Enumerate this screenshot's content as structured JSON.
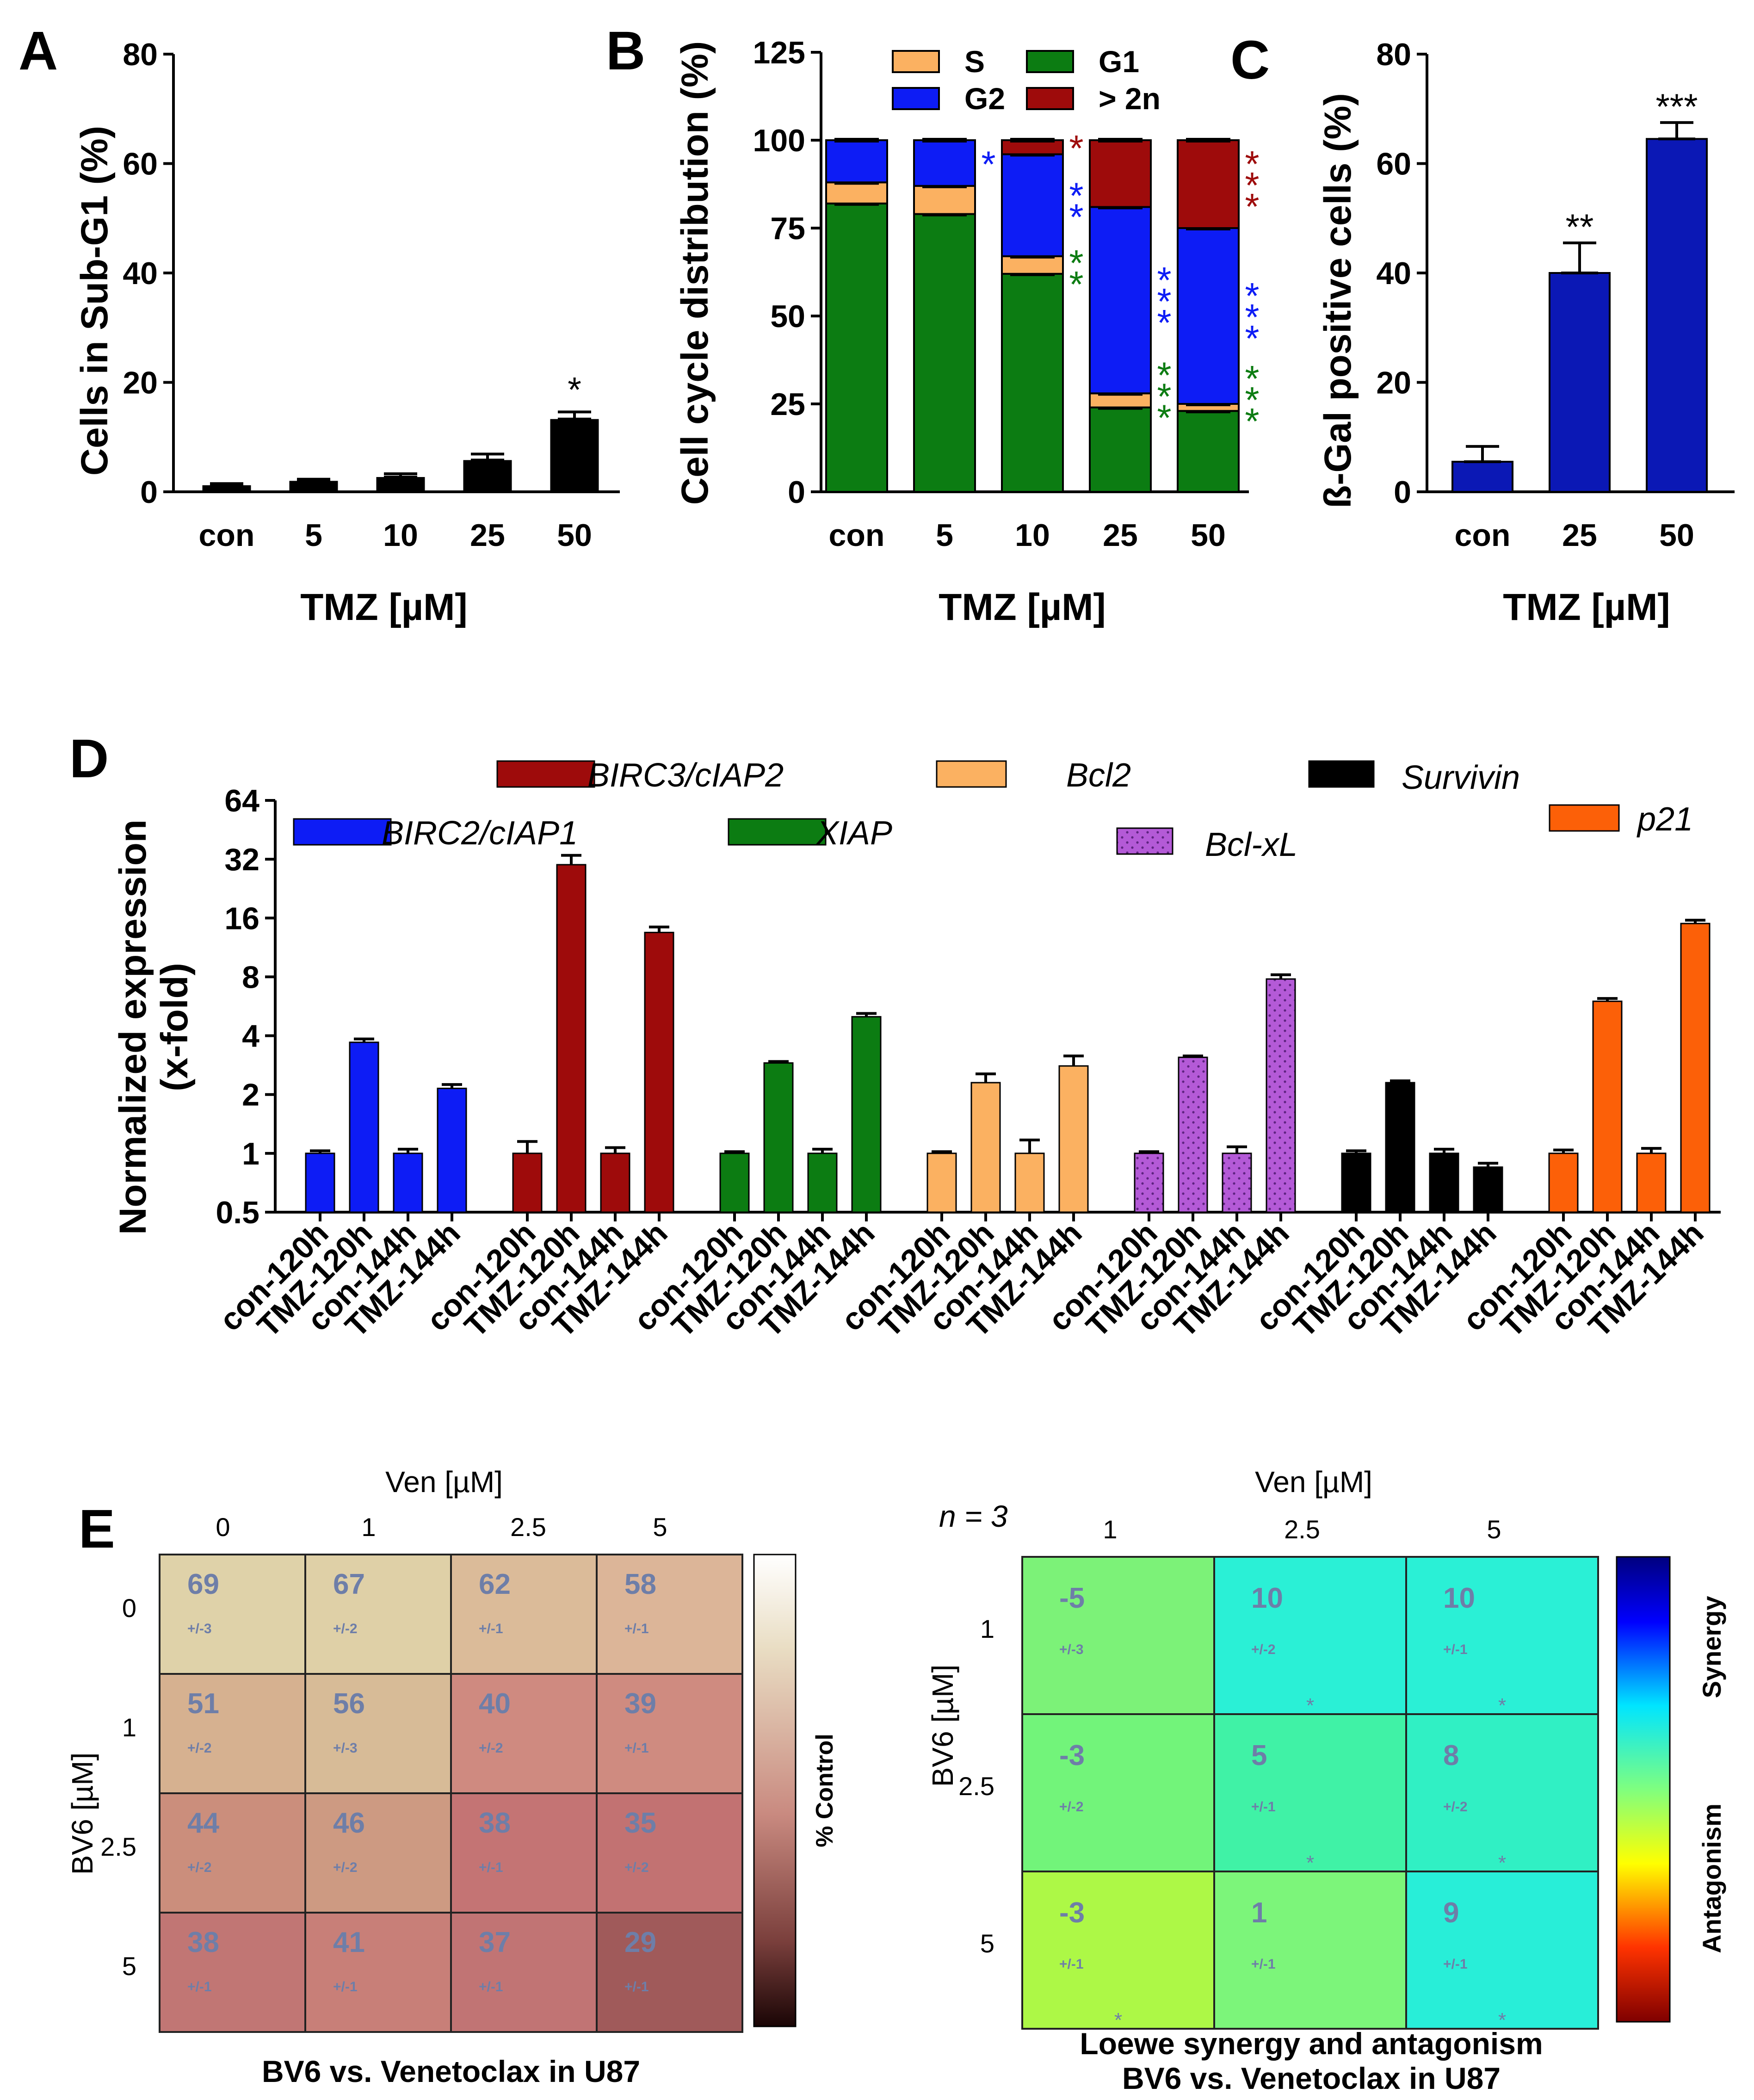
{
  "panels": {
    "A": "A",
    "B": "B",
    "C": "C",
    "D": "D",
    "E": "E"
  },
  "colors": {
    "S": "#fbb161",
    "G1": "#0c7c12",
    "G2": "#0d1cf5",
    "gt2n": "#9e0b0b",
    "blue": "#0d1cf5",
    "darkred": "#9e0b0b",
    "green": "#0c7c12",
    "lightorange": "#fbb161",
    "purple": "#b45ad7",
    "black": "#000000",
    "orange": "#fc6008",
    "navy": "#0b18b5"
  },
  "chart_data": [
    {
      "id": "A",
      "type": "bar",
      "ylabel": "Cells in Sub-G1 (%)",
      "xlabel": "TMZ [µM]",
      "ylim": [
        0,
        80
      ],
      "yticks": [
        0,
        20,
        40,
        60,
        80
      ],
      "categories": [
        "con",
        "5",
        "10",
        "25",
        "50"
      ],
      "values": [
        1.2,
        2.0,
        2.7,
        5.8,
        13.3
      ],
      "errors": [
        0.3,
        0.3,
        0.6,
        1.1,
        1.3
      ],
      "annotations": [
        "",
        "",
        "",
        "",
        "*"
      ]
    },
    {
      "id": "B",
      "type": "bar",
      "ylabel": "Cell cycle distribution (%)",
      "xlabel": "TMZ [µM]",
      "ylim": [
        0,
        125
      ],
      "yticks": [
        0,
        25,
        50,
        75,
        100,
        125
      ],
      "categories": [
        "con",
        "5",
        "10",
        "25",
        "50"
      ],
      "legend": [
        "S",
        "G1",
        "G2",
        "> 2n"
      ],
      "series": [
        {
          "name": "G1",
          "values": [
            82,
            79,
            62,
            24,
            23
          ]
        },
        {
          "name": "S",
          "values": [
            6,
            8,
            5,
            4,
            2
          ]
        },
        {
          "name": "G2",
          "values": [
            12,
            13,
            29,
            53,
            50
          ]
        },
        {
          "name": "> 2n",
          "values": [
            0,
            0,
            4,
            19,
            25
          ]
        }
      ],
      "annotations": [
        {
          "category": "5",
          "series": "G2",
          "text": "*"
        },
        {
          "category": "10",
          "series": "> 2n",
          "text": "*"
        },
        {
          "category": "10",
          "series": "G2",
          "text": "**"
        },
        {
          "category": "10",
          "series": "G1",
          "text": "**"
        },
        {
          "category": "25",
          "series": "G2",
          "text": "***"
        },
        {
          "category": "25",
          "series": "G1",
          "text": "***"
        },
        {
          "category": "50",
          "series": "> 2n",
          "text": "***"
        },
        {
          "category": "50",
          "series": "G2",
          "text": "***"
        },
        {
          "category": "50",
          "series": "G1",
          "text": "***"
        }
      ]
    },
    {
      "id": "C",
      "type": "bar",
      "ylabel": "ß-Gal positive cells (%)",
      "xlabel": "TMZ [µM]",
      "ylim": [
        0,
        80
      ],
      "yticks": [
        0,
        20,
        40,
        60,
        80
      ],
      "categories": [
        "con",
        "25",
        "50"
      ],
      "values": [
        5.5,
        40,
        64.5
      ],
      "errors": [
        2.8,
        5.5,
        3
      ],
      "annotations": [
        "",
        "**",
        "***"
      ]
    },
    {
      "id": "D",
      "type": "bar",
      "ylabel": "Normalized expression",
      "ylabel2": "(x-fold)",
      "yscale": "log2",
      "ylim": [
        0.5,
        64
      ],
      "yticks": [
        "0.5",
        "1",
        "2",
        "4",
        "8",
        "16",
        "32",
        "64"
      ],
      "categories": [
        "con-120h",
        "TMZ-120h",
        "con-144h",
        "TMZ-144h"
      ],
      "series": [
        {
          "name": "BIRC2/cIAP1",
          "values": [
            1,
            3.7,
            1,
            2.15
          ],
          "errors": [
            0.03,
            0.15,
            0.05,
            0.1
          ]
        },
        {
          "name": "BIRC3/cIAP2",
          "values": [
            1,
            30,
            1,
            13.5
          ],
          "errors": [
            0.15,
            3.5,
            0.07,
            0.9
          ]
        },
        {
          "name": "XIAP",
          "values": [
            1,
            2.9,
            1,
            5.0
          ],
          "errors": [
            0.02,
            0.05,
            0.05,
            0.2
          ]
        },
        {
          "name": "Bcl2",
          "values": [
            1,
            2.3,
            1,
            2.8
          ],
          "errors": [
            0.02,
            0.25,
            0.17,
            0.35
          ]
        },
        {
          "name": "Bcl-xL",
          "values": [
            1,
            3.1,
            1,
            7.8
          ],
          "errors": [
            0.02,
            0.05,
            0.08,
            0.4
          ]
        },
        {
          "name": "Survivin",
          "values": [
            1,
            2.3,
            1,
            0.85
          ],
          "errors": [
            0.03,
            0.05,
            0.05,
            0.04
          ]
        },
        {
          "name": "p21",
          "values": [
            1,
            6.0,
            1,
            15
          ],
          "errors": [
            0.04,
            0.2,
            0.06,
            0.6
          ]
        }
      ]
    },
    {
      "id": "E1",
      "type": "heatmap",
      "title": "BV6 vs. Venetoclax in U87",
      "xlabel": "Ven [µM]",
      "ylabel": "BV6 [µM]",
      "xticks": [
        "0",
        "1",
        "2.5",
        "5"
      ],
      "yticks": [
        "0",
        "1",
        "2.5",
        "5"
      ],
      "colorbar_label": "% Control",
      "values": [
        [
          69,
          67,
          62,
          58
        ],
        [
          51,
          56,
          40,
          39
        ],
        [
          44,
          46,
          38,
          35
        ],
        [
          38,
          41,
          37,
          29
        ]
      ],
      "errors": [
        [
          "+/-3",
          "+/-2",
          "+/-1",
          "+/-1"
        ],
        [
          "+/-2",
          "+/-3",
          "+/-2",
          "+/-1"
        ],
        [
          "+/-2",
          "+/-2",
          "+/-1",
          "+/-2"
        ],
        [
          "+/-1",
          "+/-1",
          "+/-1",
          "+/-1"
        ]
      ],
      "cell_colors": [
        [
          "#dfd2a9",
          "#dfd0a7",
          "#dbbb99",
          "#dcb598"
        ],
        [
          "#d6b190",
          "#d7bb97",
          "#cf8a80",
          "#cf8b80"
        ],
        [
          "#cb8e7c",
          "#cd9a82",
          "#c47474",
          "#c27272"
        ],
        [
          "#c17674",
          "#c87f78",
          "#c17474",
          "#a05a5a"
        ]
      ]
    },
    {
      "id": "E2",
      "type": "heatmap",
      "title": "Loewe synergy and antagonism",
      "subtitle": "BV6 vs. Venetoclax in U87",
      "note": "n = 3",
      "xlabel": "Ven [µM]",
      "ylabel": "BV6 [µM]",
      "xticks": [
        "1",
        "2.5",
        "5"
      ],
      "yticks": [
        "1",
        "2.5",
        "5"
      ],
      "colorbar_top": "Synergy",
      "colorbar_bottom": "Antagonism",
      "values": [
        [
          -5,
          10,
          10
        ],
        [
          -3,
          5,
          8
        ],
        [
          -3,
          1,
          9
        ]
      ],
      "errors": [
        [
          "+/-3",
          "+/-2",
          "+/-1"
        ],
        [
          "+/-2",
          "+/-1",
          "+/-2"
        ],
        [
          "+/-1",
          "+/-1",
          "+/-1"
        ]
      ],
      "significance": [
        [
          "",
          "*",
          "*"
        ],
        [
          "",
          "*",
          "*"
        ],
        [
          "*",
          "",
          "*"
        ]
      ],
      "cell_colors": [
        [
          "#7cf278",
          "#2af0d6",
          "#2af0d6"
        ],
        [
          "#72f47a",
          "#40f2a6",
          "#30f0c4"
        ],
        [
          "#adf846",
          "#7cf57a",
          "#28eed8"
        ]
      ]
    }
  ]
}
